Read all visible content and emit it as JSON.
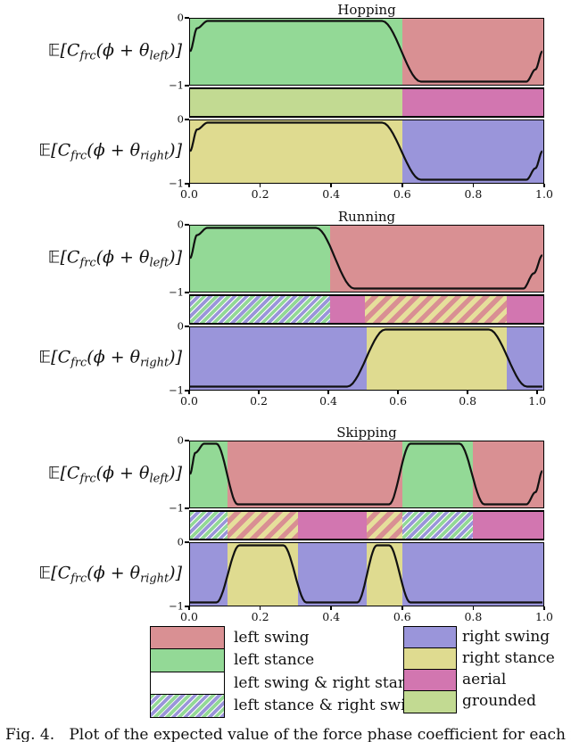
{
  "figure": {
    "caption": "Fig. 4.   Plot of the expected value of the force phase coefficient for each foot"
  },
  "palette": {
    "left_swing": "#d99093",
    "left_stance": "#93d996",
    "right_swing": "#9a95da",
    "right_stance": "#dfdb90",
    "aerial": "#d276b0",
    "grounded": "#c2da92",
    "white": "#ffffff",
    "curve": "#111111",
    "hatch_green": "#93d996",
    "hatch_purple": "#9a95da",
    "hatch_yellow": "#e6df9b",
    "hatch_red": "#d98f93"
  },
  "chart_data": {
    "type": "line",
    "x_ticks": [
      "0.0",
      "0.2",
      "0.4",
      "0.6",
      "0.8",
      "1.0"
    ],
    "y_tick_top": "0",
    "y_tick_bottom": "−1",
    "ylim": [
      -1,
      0
    ],
    "left_label_segments": [
      {
        "t": "𝔼[C",
        "sub": false
      },
      {
        "t": "frc",
        "sub": true
      },
      {
        "t": "(ϕ + θ",
        "sub": false
      },
      {
        "t": "left",
        "sub": true
      },
      {
        "t": ")]",
        "sub": false
      }
    ],
    "right_label_segments": [
      {
        "t": "𝔼[C",
        "sub": false
      },
      {
        "t": "frc",
        "sub": true
      },
      {
        "t": "(ϕ + θ",
        "sub": false
      },
      {
        "t": "right",
        "sub": true
      },
      {
        "t": ")]",
        "sub": false
      }
    ],
    "panels": [
      {
        "title": "Hopping",
        "xmax": 1.0,
        "top": {
          "regions": [
            [
              0,
              0.6,
              "left_stance"
            ],
            [
              0.6,
              1.0,
              "left_swing"
            ]
          ],
          "curve": [
            [
              0,
              -0.5
            ],
            [
              0.02,
              -0.12
            ],
            [
              0.05,
              0
            ],
            [
              0.545,
              0
            ],
            [
              0.655,
              -1
            ],
            [
              0.955,
              -1
            ],
            [
              0.98,
              -0.8
            ],
            [
              1.0,
              -0.5
            ]
          ]
        },
        "strip": {
          "regions": [
            [
              0,
              0.6,
              "grounded"
            ],
            [
              0.6,
              1.0,
              "aerial"
            ]
          ]
        },
        "bottom": {
          "regions": [
            [
              0,
              0.6,
              "right_stance"
            ],
            [
              0.6,
              1.0,
              "right_swing"
            ]
          ],
          "curve": [
            [
              0,
              -0.5
            ],
            [
              0.02,
              -0.12
            ],
            [
              0.05,
              0
            ],
            [
              0.545,
              0
            ],
            [
              0.655,
              -1
            ],
            [
              0.955,
              -1
            ],
            [
              0.98,
              -0.8
            ],
            [
              1.0,
              -0.5
            ]
          ]
        }
      },
      {
        "title": "Running",
        "xmax": 1.02,
        "top": {
          "regions": [
            [
              0,
              0.405,
              "left_stance"
            ],
            [
              0.405,
              1.02,
              "left_swing"
            ]
          ],
          "curve": [
            [
              0,
              -0.5
            ],
            [
              0.02,
              -0.12
            ],
            [
              0.05,
              0
            ],
            [
              0.365,
              0
            ],
            [
              0.475,
              -1
            ],
            [
              0.965,
              -1
            ],
            [
              0.995,
              -0.75
            ],
            [
              1.02,
              -0.45
            ]
          ]
        },
        "strip": {
          "regions": [
            [
              0,
              0.405,
              "left_stance_right_swing"
            ],
            [
              0.405,
              0.505,
              "aerial"
            ],
            [
              0.505,
              0.915,
              "left_swing_right_stance"
            ],
            [
              0.915,
              1.02,
              "aerial"
            ]
          ]
        },
        "bottom": {
          "regions": [
            [
              0,
              0.51,
              "right_swing"
            ],
            [
              0.51,
              0.915,
              "right_stance"
            ],
            [
              0.915,
              1.02,
              "right_swing"
            ]
          ],
          "curve": [
            [
              0,
              -1
            ],
            [
              0.455,
              -1
            ],
            [
              0.565,
              0
            ],
            [
              0.865,
              0
            ],
            [
              0.975,
              -1
            ],
            [
              1.02,
              -1
            ]
          ]
        }
      },
      {
        "title": "Skipping",
        "xmax": 1.0,
        "top": {
          "regions": [
            [
              0,
              0.105,
              "left_stance"
            ],
            [
              0.105,
              0.6,
              "left_swing"
            ],
            [
              0.6,
              0.8,
              "left_stance"
            ],
            [
              0.8,
              1.0,
              "left_swing"
            ]
          ],
          "curve": [
            [
              0,
              -0.5
            ],
            [
              0.015,
              -0.15
            ],
            [
              0.04,
              0
            ],
            [
              0.075,
              0
            ],
            [
              0.135,
              -1
            ],
            [
              0.565,
              -1
            ],
            [
              0.625,
              0
            ],
            [
              0.765,
              0
            ],
            [
              0.835,
              -1
            ],
            [
              0.955,
              -1
            ],
            [
              0.98,
              -0.8
            ],
            [
              1.0,
              -0.45
            ]
          ]
        },
        "strip": {
          "regions": [
            [
              0,
              0.105,
              "left_stance_right_swing"
            ],
            [
              0.105,
              0.305,
              "left_swing_right_stance"
            ],
            [
              0.305,
              0.5,
              "aerial"
            ],
            [
              0.5,
              0.6,
              "left_swing_right_stance"
            ],
            [
              0.6,
              0.8,
              "left_stance_right_swing"
            ],
            [
              0.8,
              1.0,
              "aerial"
            ]
          ]
        },
        "bottom": {
          "regions": [
            [
              0,
              0.105,
              "right_swing"
            ],
            [
              0.105,
              0.305,
              "right_stance"
            ],
            [
              0.305,
              0.5,
              "right_swing"
            ],
            [
              0.5,
              0.6,
              "right_stance"
            ],
            [
              0.6,
              1.0,
              "right_swing"
            ]
          ],
          "curve": [
            [
              0,
              -1
            ],
            [
              0.075,
              -1
            ],
            [
              0.14,
              0
            ],
            [
              0.265,
              0
            ],
            [
              0.33,
              -1
            ],
            [
              0.475,
              -1
            ],
            [
              0.53,
              0
            ],
            [
              0.565,
              0
            ],
            [
              0.625,
              -1
            ],
            [
              1.0,
              -1
            ]
          ]
        }
      }
    ]
  },
  "legend": {
    "left": [
      {
        "label": "left swing",
        "fill": "left_swing"
      },
      {
        "label": "left stance",
        "fill": "left_stance"
      },
      {
        "label": "left swing & right stance",
        "fill": "white"
      },
      {
        "label": "left stance & right swing",
        "fill": "left_stance_right_swing"
      }
    ],
    "right": [
      {
        "label": "right swing",
        "fill": "right_swing"
      },
      {
        "label": "right stance",
        "fill": "right_stance"
      },
      {
        "label": "aerial",
        "fill": "aerial"
      },
      {
        "label": "grounded",
        "fill": "grounded"
      }
    ]
  }
}
